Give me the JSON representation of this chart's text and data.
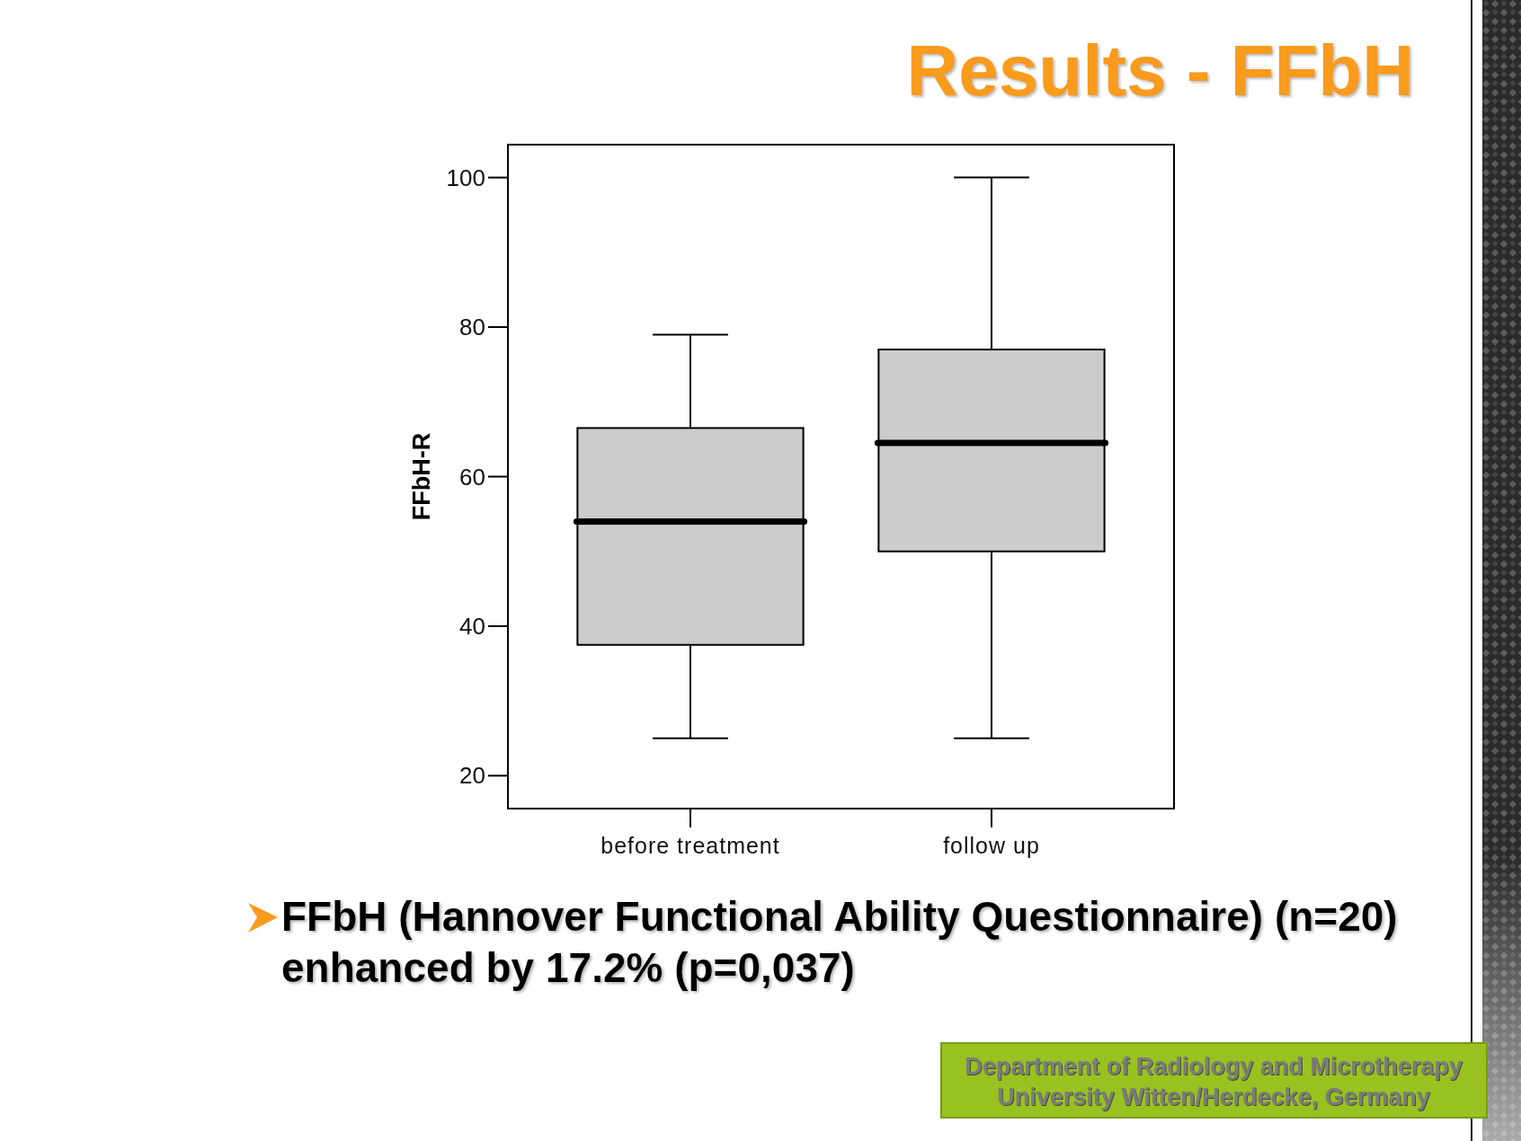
{
  "chart_data": {
    "type": "box",
    "title": "Results - FFbH",
    "ylabel": "FFbH-R",
    "categories": [
      "before treatment",
      "follow up"
    ],
    "boxes": [
      {
        "low": 25,
        "q1": 37.5,
        "median": 54,
        "q3": 66.5,
        "high": 79
      },
      {
        "low": 25,
        "q1": 50,
        "median": 64.5,
        "q3": 77,
        "high": 100
      }
    ],
    "color": "#cccccc",
    "ylim": [
      15.6,
      104.4
    ],
    "yticks": [
      20,
      40,
      60,
      80,
      100
    ],
    "annotations": [
      "FFbH (Hannover Functional Ability Questionnaire) (n=20) enhanced by 17.2% (p=0,037)",
      "Department of Radiology and Microtherapy University Witten/Herdecke, Germany"
    ]
  }
}
